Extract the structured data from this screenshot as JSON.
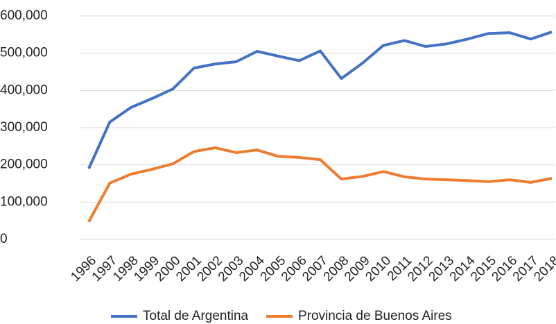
{
  "chart_data": {
    "type": "line",
    "categories": [
      "1996",
      "1997",
      "1998",
      "1999",
      "2000",
      "2001",
      "2002",
      "2003",
      "2004",
      "2005",
      "2006",
      "2007",
      "2008",
      "2009",
      "2010",
      "2011",
      "2012",
      "2013",
      "2014",
      "2015",
      "2016",
      "2017",
      "2018"
    ],
    "series": [
      {
        "name": "Total de Argentina",
        "color": "#4472c4",
        "values": [
          190000,
          315000,
          354000,
          378000,
          404000,
          460000,
          471000,
          477000,
          505000,
          492000,
          480000,
          506000,
          432000,
          473000,
          521000,
          534000,
          518000,
          525000,
          538000,
          553000,
          555000,
          538000,
          557000
        ]
      },
      {
        "name": "Provincia de Buenos Aires",
        "color": "#ed7d31",
        "values": [
          47000,
          151000,
          175000,
          188000,
          203000,
          236000,
          246000,
          233000,
          240000,
          223000,
          220000,
          214000,
          162000,
          169000,
          182000,
          168000,
          162000,
          160000,
          158000,
          155000,
          160000,
          153000,
          164000
        ]
      }
    ],
    "ylim": [
      0,
      600000
    ],
    "yticks": [
      0,
      {
        "value": 100000,
        "label": "100,000"
      },
      {
        "value": 200000,
        "label": "200,000"
      },
      {
        "value": 300000,
        "label": "300,000"
      },
      {
        "value": 400000,
        "label": "400,000"
      },
      {
        "value": 500000,
        "label": "500,000"
      },
      {
        "value": 600000,
        "label": "600,000"
      }
    ],
    "grid": true,
    "legend": "bottom"
  }
}
